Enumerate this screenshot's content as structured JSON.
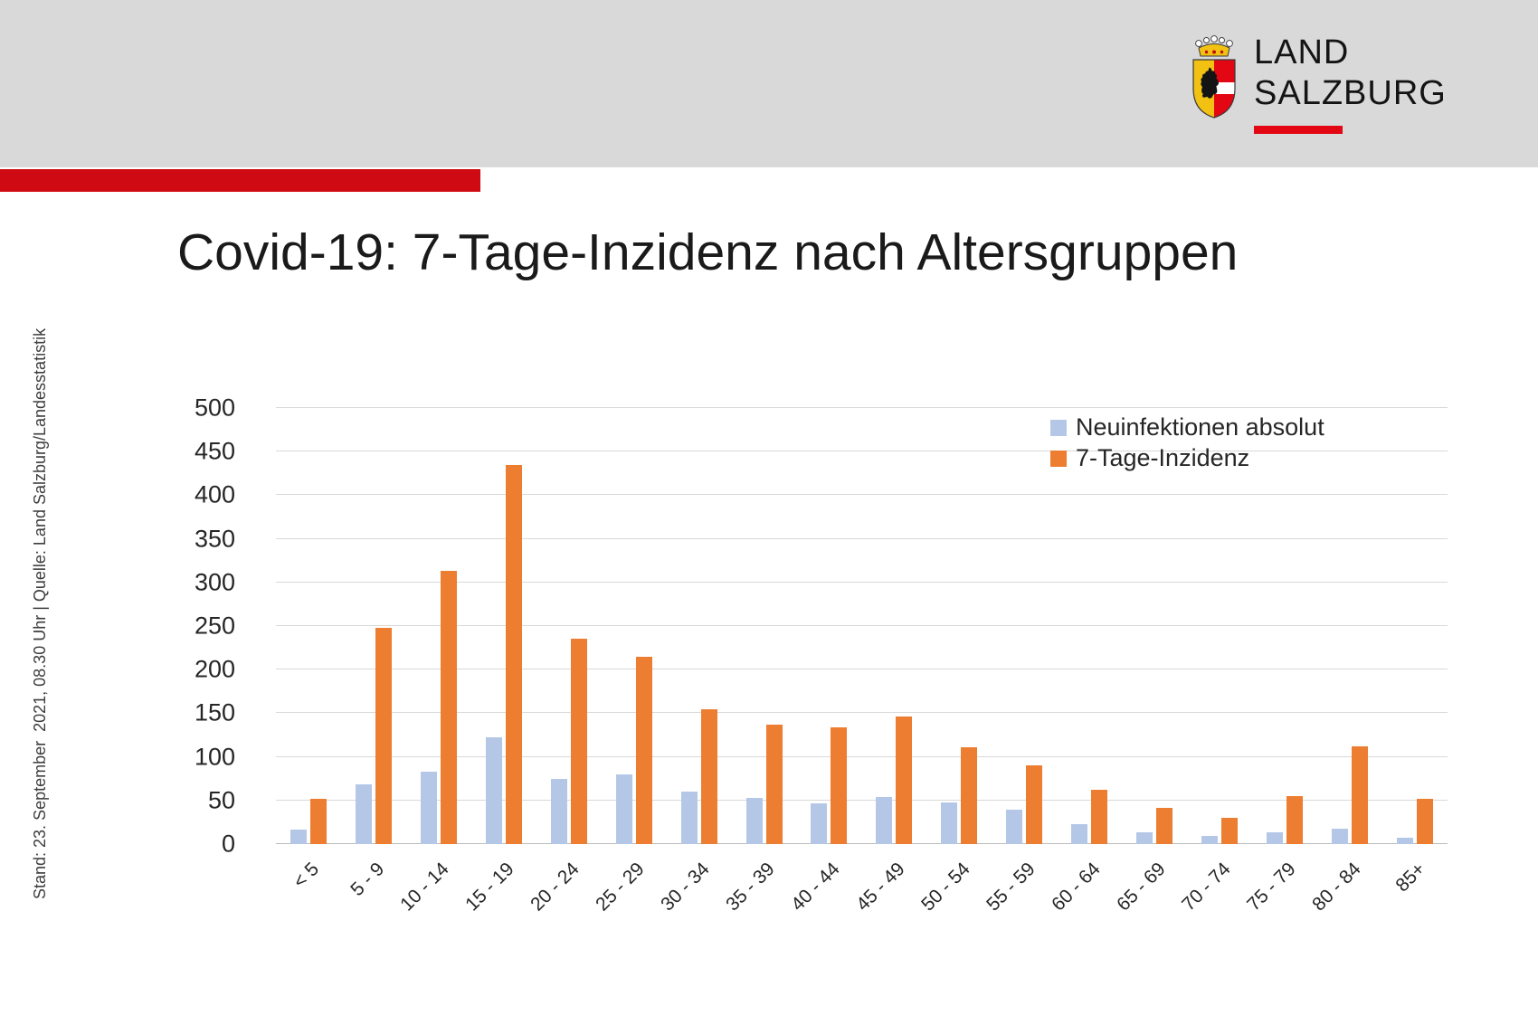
{
  "header": {
    "logo": {
      "line1": "LAND",
      "line2": "SALZBURG",
      "crest_icon": "salzburg-coat-of-arms"
    }
  },
  "title": "Covid-19: 7-Tage-Inzidenz nach Altersgruppen",
  "source_note": "Stand: 23. September  2021, 08.30 Uhr | Quelle: Land Salzburg/Landesstatistik",
  "colors": {
    "header_band": "#d9d9d9",
    "accent_bar": "#d00a12",
    "logo_underline": "#e30613",
    "series_absolut": "#b4c7e7",
    "series_inzidenz": "#ed7d31",
    "gridline": "#d9d9d9"
  },
  "chart_data": {
    "type": "bar",
    "title": "Covid-19: 7-Tage-Inzidenz nach Altersgruppen",
    "categories": [
      "< 5",
      "5 - 9",
      "10 - 14",
      "15 - 19",
      "20 - 24",
      "25 - 29",
      "30 - 34",
      "35 - 39",
      "40 - 44",
      "45 - 49",
      "50 - 54",
      "55 - 59",
      "60 - 64",
      "65 - 69",
      "70 - 74",
      "75 - 79",
      "80 - 84",
      "85+"
    ],
    "series": [
      {
        "name": "Neuinfektionen absolut",
        "color": "#b4c7e7",
        "values": [
          17,
          68,
          83,
          122,
          75,
          80,
          60,
          53,
          47,
          54,
          48,
          39,
          23,
          13,
          9,
          13,
          18,
          7
        ]
      },
      {
        "name": "7-Tage-Inzidenz",
        "color": "#ed7d31",
        "values": [
          52,
          248,
          313,
          435,
          235,
          215,
          155,
          137,
          134,
          146,
          111,
          90,
          62,
          41,
          30,
          55,
          112,
          52
        ]
      }
    ],
    "xlabel": "",
    "ylabel": "",
    "ylim": [
      0,
      500
    ],
    "ytick_step": 50,
    "grid": true,
    "legend_position": "top-right"
  }
}
